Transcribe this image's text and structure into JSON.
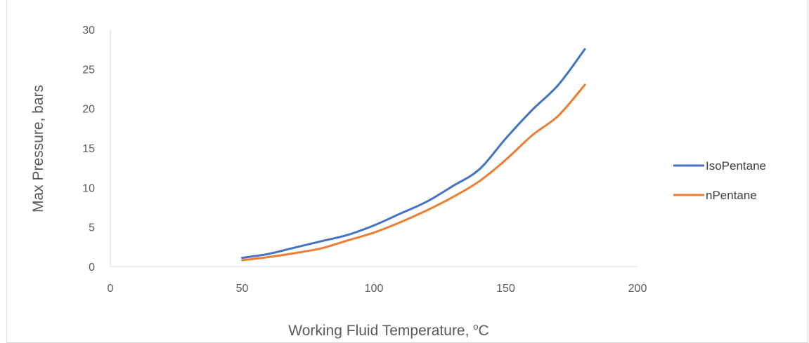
{
  "chart_data": {
    "type": "line",
    "title": "",
    "xlabel": "Working Fluid Temperature, ",
    "xlabel_sup": "o",
    "xlabel_unit": "C",
    "ylabel": "Max Pressure, bars",
    "xlim": [
      0,
      200
    ],
    "ylim": [
      0,
      30
    ],
    "xticks": [
      0,
      50,
      100,
      150,
      200
    ],
    "yticks": [
      0,
      5,
      10,
      15,
      20,
      25,
      30
    ],
    "grid": false,
    "legend_position": "right",
    "series": [
      {
        "name": "IsoPentane",
        "color": "#4472c4",
        "x": [
          50,
          60,
          70,
          80,
          90,
          100,
          110,
          120,
          130,
          140,
          150,
          160,
          170,
          180
        ],
        "y": [
          1.1,
          1.6,
          2.4,
          3.2,
          4.0,
          5.2,
          6.7,
          8.2,
          10.2,
          12.3,
          16.2,
          19.8,
          23.0,
          27.5
        ]
      },
      {
        "name": "nPentane",
        "color": "#ed7d31",
        "x": [
          50,
          60,
          70,
          80,
          90,
          100,
          110,
          120,
          130,
          140,
          150,
          160,
          170,
          180
        ],
        "y": [
          0.8,
          1.2,
          1.7,
          2.3,
          3.3,
          4.3,
          5.6,
          7.1,
          8.8,
          10.8,
          13.5,
          16.6,
          19.1,
          23.0
        ]
      }
    ]
  }
}
